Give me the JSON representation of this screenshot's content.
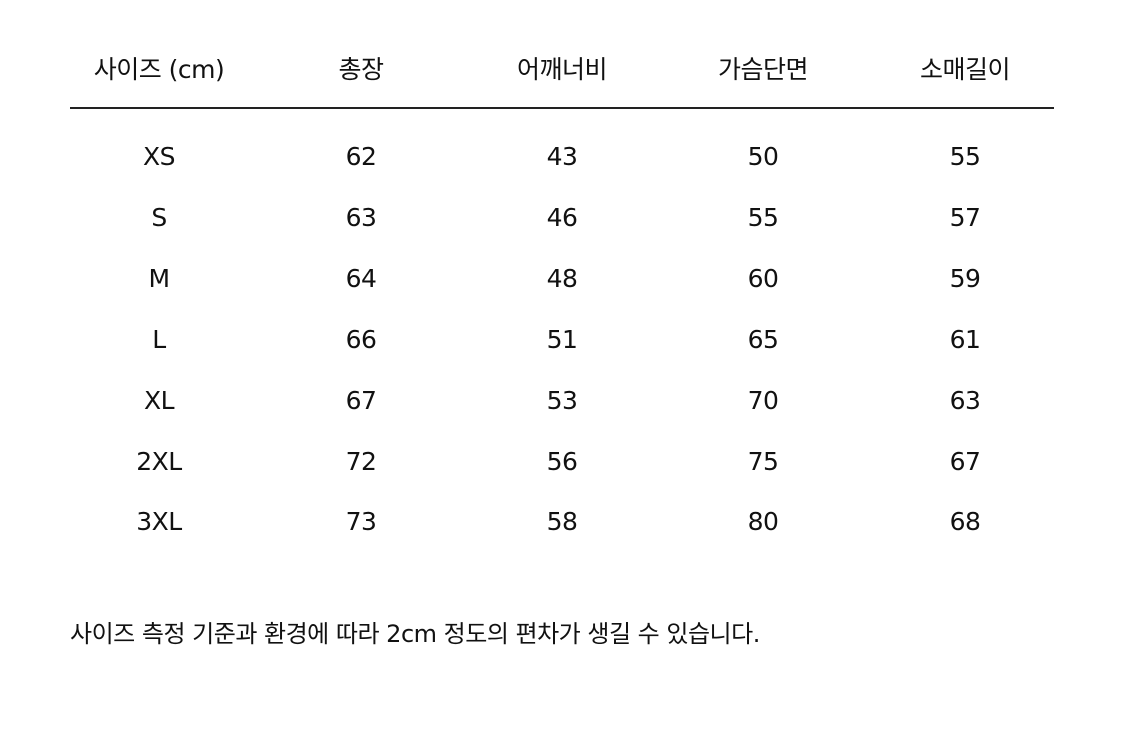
{
  "table": {
    "headers": [
      "사이즈 (cm)",
      "총장",
      "어깨너비",
      "가슴단면",
      "소매길이"
    ],
    "rows": [
      [
        "XS",
        "62",
        "43",
        "50",
        "55"
      ],
      [
        "S",
        "63",
        "46",
        "55",
        "57"
      ],
      [
        "M",
        "64",
        "48",
        "60",
        "59"
      ],
      [
        "L",
        "66",
        "51",
        "65",
        "61"
      ],
      [
        "XL",
        "67",
        "53",
        "70",
        "63"
      ],
      [
        "2XL",
        "72",
        "56",
        "75",
        "67"
      ],
      [
        "3XL",
        "73",
        "58",
        "80",
        "68"
      ]
    ]
  },
  "note": "사이즈 측정 기준과 환경에 따라 2cm 정도의 편차가 생길 수 있습니다."
}
